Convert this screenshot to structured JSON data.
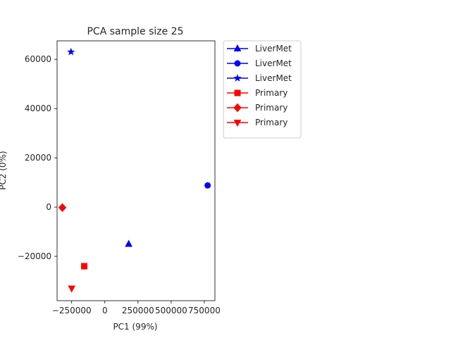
{
  "chart_data": {
    "type": "scatter",
    "title": "PCA sample size 25",
    "xlabel": "PC1 (99%)",
    "ylabel": "PC2 (0%)",
    "xlim": [
      -360000,
      830000
    ],
    "ylim": [
      -38000,
      67500
    ],
    "xticks": [
      {
        "value": -250000,
        "label": "−250000"
      },
      {
        "value": 0,
        "label": "0"
      },
      {
        "value": 250000,
        "label": "250000"
      },
      {
        "value": 500000,
        "label": "500000"
      },
      {
        "value": 750000,
        "label": "750000"
      }
    ],
    "yticks": [
      {
        "value": -20000,
        "label": "−20000"
      },
      {
        "value": 0,
        "label": "0"
      },
      {
        "value": 20000,
        "label": "20000"
      },
      {
        "value": 40000,
        "label": "40000"
      },
      {
        "value": 60000,
        "label": "60000"
      }
    ],
    "grid": false,
    "legend_position": "outside-right-top",
    "series": [
      {
        "name": "LiverMet",
        "color": "#0000ff",
        "marker": "triangle-up",
        "points": [
          {
            "x": 180000,
            "y": -15000
          }
        ]
      },
      {
        "name": "LiverMet",
        "color": "#0000ff",
        "marker": "circle",
        "points": [
          {
            "x": 775000,
            "y": 8800
          }
        ]
      },
      {
        "name": "LiverMet",
        "color": "#0000ff",
        "marker": "star",
        "points": [
          {
            "x": -255000,
            "y": 63000
          }
        ]
      },
      {
        "name": "Primary",
        "color": "#ff0000",
        "marker": "square",
        "points": [
          {
            "x": -155000,
            "y": -24000
          }
        ]
      },
      {
        "name": "Primary",
        "color": "#ff0000",
        "marker": "diamond",
        "points": [
          {
            "x": -320000,
            "y": -200
          }
        ]
      },
      {
        "name": "Primary",
        "color": "#ff0000",
        "marker": "triangle-down",
        "points": [
          {
            "x": -250000,
            "y": -33000
          }
        ]
      }
    ]
  }
}
